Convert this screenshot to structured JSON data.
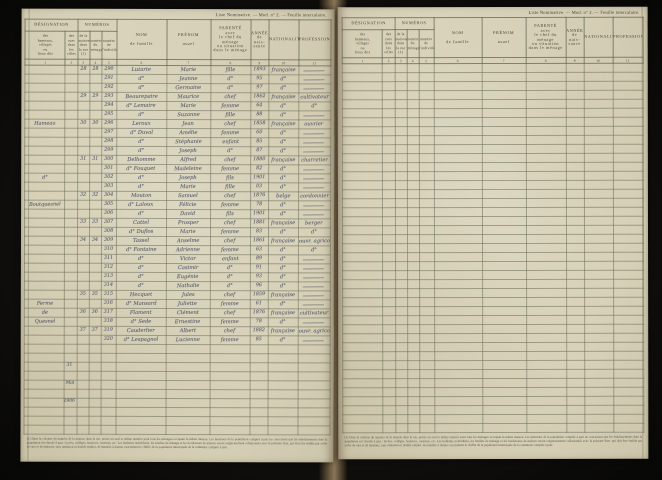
{
  "caption": "Liste Nominative. — Mod. n° 2. — Feuille intercalaire.",
  "header": {
    "group_designation": "DÉSIGNATION",
    "sub_lieux": "des\nhameaux,\nvillages\nou\nlieux dits",
    "sub_rues": "des rues\ndans\nles villes",
    "group_numeros": "NUMÉROS",
    "sub_maison": "de la\nmaison\ndans\nla rue (1)",
    "sub_menage": "numéro\ndu\nménage",
    "sub_individu": "numéro\nde\nl'individu",
    "col_nom": "NOM\n\nde famille",
    "col_prenom": "PRÉNOM\n\nusuel",
    "col_parente": "PARENTÉ\navec\nle chef du ménage\nou situation\ndans le ménage",
    "col_annee": "ANNÉE\nde\nnais-\nsance",
    "col_nationalite": "NATIONALITÉ",
    "col_profession": "PROFESSION"
  },
  "column_numbers": [
    "1",
    "2",
    "3",
    "4",
    "5",
    "6",
    "7",
    "8",
    "9",
    "10",
    "11"
  ],
  "left_page": {
    "margin_note": [
      "31",
      "Mai",
      "1906"
    ],
    "blank_row_count": 10,
    "filled_rows": [
      {
        "lieu": "",
        "maison": "28",
        "menage": "28",
        "individu": "290",
        "nom": "Lutarte",
        "prenom": "Marie",
        "parente": "fille",
        "annee": "1893",
        "nationalite": "française",
        "profession": ""
      },
      {
        "lieu": "",
        "maison": "",
        "menage": "",
        "individu": "291",
        "nom": "d°",
        "prenom": "Jeanne",
        "parente": "d°",
        "annee": "95",
        "nationalite": "d°",
        "profession": ""
      },
      {
        "lieu": "",
        "maison": "",
        "menage": "",
        "individu": "292",
        "nom": "d°",
        "prenom": "Germaine",
        "parente": "d°",
        "annee": "97",
        "nationalite": "d°",
        "profession": ""
      },
      {
        "lieu": "",
        "maison": "29",
        "menage": "29",
        "individu": "293",
        "nom": "Beaurepaire",
        "prenom": "Maurice",
        "parente": "chef",
        "annee": "1862",
        "nationalite": "française",
        "profession": "cultivateur"
      },
      {
        "lieu": "",
        "maison": "",
        "menage": "",
        "individu": "294",
        "nom": "d° Lemaire",
        "prenom": "Marie",
        "parente": "femme",
        "annee": "64",
        "nationalite": "d°",
        "profession": "d°"
      },
      {
        "lieu": "",
        "maison": "",
        "menage": "",
        "individu": "295",
        "nom": "d°",
        "prenom": "Suzanne",
        "parente": "fille",
        "annee": "88",
        "nationalite": "d°",
        "profession": ""
      },
      {
        "lieu": "Hameau",
        "maison": "30",
        "menage": "30",
        "individu": "296",
        "nom": "Leroux",
        "prenom": "Jean",
        "parente": "chef",
        "annee": "1858",
        "nationalite": "française",
        "profession": "ouvrier"
      },
      {
        "lieu": "",
        "maison": "",
        "menage": "",
        "individu": "297",
        "nom": "d° Duval",
        "prenom": "Amélie",
        "parente": "femme",
        "annee": "60",
        "nationalite": "d°",
        "profession": ""
      },
      {
        "lieu": "",
        "maison": "",
        "menage": "",
        "individu": "298",
        "nom": "d°",
        "prenom": "Stéphanie",
        "parente": "enfant",
        "annee": "85",
        "nationalite": "d°",
        "profession": ""
      },
      {
        "lieu": "",
        "maison": "",
        "menage": "",
        "individu": "299",
        "nom": "d°",
        "prenom": "Joseph",
        "parente": "d°",
        "annee": "87",
        "nationalite": "d°",
        "profession": ""
      },
      {
        "lieu": "",
        "maison": "31",
        "menage": "31",
        "individu": "300",
        "nom": "Delhomme",
        "prenom": "Alfred",
        "parente": "chef",
        "annee": "1880",
        "nationalite": "française",
        "profession": "charretier"
      },
      {
        "lieu": "",
        "maison": "",
        "menage": "",
        "individu": "301",
        "nom": "d° Fouquet",
        "prenom": "Madeleine",
        "parente": "femme",
        "annee": "82",
        "nationalite": "d°",
        "profession": ""
      },
      {
        "lieu": "d°",
        "maison": "",
        "menage": "",
        "individu": "302",
        "nom": "d°",
        "prenom": "Joseph",
        "parente": "fils",
        "annee": "1901",
        "nationalite": "d°",
        "profession": ""
      },
      {
        "lieu": "",
        "maison": "",
        "menage": "",
        "individu": "303",
        "nom": "d°",
        "prenom": "Marie",
        "parente": "fille",
        "annee": "03",
        "nationalite": "d°",
        "profession": ""
      },
      {
        "lieu": "",
        "maison": "32",
        "menage": "32",
        "individu": "304",
        "nom": "Mouton",
        "prenom": "Samuel",
        "parente": "chef",
        "annee": "1876",
        "nationalite": "belge",
        "profession": "cordonnier"
      },
      {
        "lieu": "Boutquesnel",
        "maison": "",
        "menage": "",
        "individu": "305",
        "nom": "d° Laloux",
        "prenom": "Félicie",
        "parente": "femme",
        "annee": "78",
        "nationalite": "d°",
        "profession": ""
      },
      {
        "lieu": "",
        "maison": "",
        "menage": "",
        "individu": "306",
        "nom": "d°",
        "prenom": "David",
        "parente": "fils",
        "annee": "1901",
        "nationalite": "d°",
        "profession": ""
      },
      {
        "lieu": "",
        "maison": "33",
        "menage": "33",
        "individu": "307",
        "nom": "Cattel",
        "prenom": "Prosper",
        "parente": "chef",
        "annee": "1881",
        "nationalite": "française",
        "profession": "berger"
      },
      {
        "lieu": "",
        "maison": "",
        "menage": "",
        "individu": "308",
        "nom": "d° Duflos",
        "prenom": "Marie",
        "parente": "femme",
        "annee": "83",
        "nationalite": "d°",
        "profession": "d°"
      },
      {
        "lieu": "",
        "maison": "34",
        "menage": "34",
        "individu": "309",
        "nom": "Tassel",
        "prenom": "Anselme",
        "parente": "chef",
        "annee": "1861",
        "nationalite": "française",
        "profession": "ouvr. agricole"
      },
      {
        "lieu": "",
        "maison": "",
        "menage": "",
        "individu": "310",
        "nom": "d° Fontaine",
        "prenom": "Adrienne",
        "parente": "femme",
        "annee": "63",
        "nationalite": "d°",
        "profession": "d°"
      },
      {
        "lieu": "",
        "maison": "",
        "menage": "",
        "individu": "311",
        "nom": "d°",
        "prenom": "Victor",
        "parente": "enfant",
        "annee": "89",
        "nationalite": "d°",
        "profession": ""
      },
      {
        "lieu": "",
        "maison": "",
        "menage": "",
        "individu": "312",
        "nom": "d°",
        "prenom": "Casimir",
        "parente": "d°",
        "annee": "91",
        "nationalite": "d°",
        "profession": ""
      },
      {
        "lieu": "",
        "maison": "",
        "menage": "",
        "individu": "313",
        "nom": "d°",
        "prenom": "Eugénie",
        "parente": "d°",
        "annee": "93",
        "nationalite": "d°",
        "profession": ""
      },
      {
        "lieu": "",
        "maison": "",
        "menage": "",
        "individu": "314",
        "nom": "d°",
        "prenom": "Nathalie",
        "parente": "d°",
        "annee": "96",
        "nationalite": "d°",
        "profession": ""
      },
      {
        "lieu": "",
        "maison": "35",
        "menage": "35",
        "individu": "315",
        "nom": "Hecquet",
        "prenom": "Jules",
        "parente": "chef",
        "annee": "1859",
        "nationalite": "française",
        "profession": ""
      },
      {
        "lieu": "Ferme",
        "maison": "",
        "menage": "",
        "individu": "316",
        "nom": "d° Mansard",
        "prenom": "Juliette",
        "parente": "femme",
        "annee": "61",
        "nationalite": "d°",
        "profession": ""
      },
      {
        "lieu": "de",
        "maison": "36",
        "menage": "36",
        "individu": "317",
        "nom": "Flament",
        "prenom": "Clément",
        "parente": "chef",
        "annee": "1876",
        "nationalite": "française",
        "profession": "cultivateur"
      },
      {
        "lieu": "Quesnel",
        "maison": "",
        "menage": "",
        "individu": "318",
        "nom": "d° Sede",
        "prenom": "Ernestine",
        "parente": "femme",
        "annee": "78",
        "nationalite": "d°",
        "profession": ""
      },
      {
        "lieu": "",
        "maison": "37",
        "menage": "37",
        "individu": "319",
        "nom": "Cauderlier",
        "prenom": "Albert",
        "parente": "chef",
        "annee": "1882",
        "nationalite": "française",
        "profession": "ouvr. agricole"
      },
      {
        "lieu": "",
        "maison": "",
        "menage": "",
        "individu": "320",
        "nom": "d° Lespagnol",
        "prenom": "Lucienne",
        "parente": "femme",
        "annee": "85",
        "nationalite": "d°",
        "profession": ""
      }
    ]
  },
  "right_page": {
    "blank_row_count": 41
  },
  "footnote": "(1) Dans la colonne du numéro de la maison dans la rue, porter un seul et même numéro pour tous les ménages occupant la même maison. Les mentions de la population comptée à part ne concernent que les établissements dont la population est classée à part : lycées, collèges, hospices, casernes, etc. Les bulletins individuels, les feuilles de ménage et les bordereaux de maison seront soigneusement collationnés avec la présente liste, qui doit être établie par ordre de rues et de maisons, sans omission ni double emploi, de manière à donner exactement le chiffre de la population municipale de la commune comptée à part."
}
